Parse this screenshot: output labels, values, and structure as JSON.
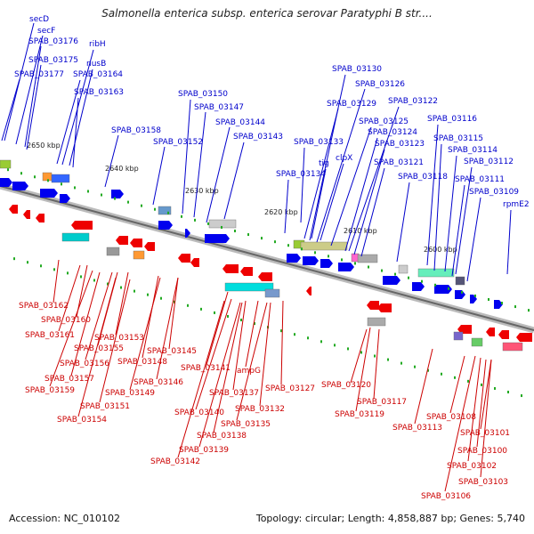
{
  "title": "Salmonella enterica subsp. enterica serovar Paratyphi B str....",
  "footer": {
    "accession": "Accession: NC_010102",
    "summary": "Topology: circular; Length: 4,858,887 bp; Genes: 5,740"
  },
  "colors": {
    "plus_label": "#0000cc",
    "minus_label": "#cc0000",
    "plus_gene": "#0000ee",
    "minus_gene": "#ee0000",
    "backbone": "#888888"
  },
  "kbp_ticks": [
    "2650 kbp",
    "2640 kbp",
    "2630 kbp",
    "2620 kbp",
    "2610 kbp",
    "2600 kbp"
  ],
  "top_labels": [
    "secD",
    "secF",
    "SPAB_03176",
    "ribH",
    "SPAB_03175",
    "nusB",
    "SPAB_03177",
    "SPAB_03164",
    "SPAB_03163",
    "SPAB_03150",
    "SPAB_03147",
    "SPAB_03144",
    "SPAB_03158",
    "SPAB_03152",
    "SPAB_03143",
    "SPAB_03130",
    "SPAB_03126",
    "SPAB_03122",
    "SPAB_03129",
    "SPAB_03125",
    "SPAB_03116",
    "SPAB_03124",
    "SPAB_03115",
    "SPAB_03133",
    "SPAB_03123",
    "SPAB_03114",
    "clpX",
    "SPAB_03112",
    "tig",
    "SPAB_03121",
    "SPAB_03134",
    "SPAB_03118",
    "SPAB_03111",
    "SPAB_03109",
    "rpmE2"
  ],
  "bottom_labels": [
    "SPAB_03162",
    "SPAB_03160",
    "SPAB_03161",
    "SPAB_03155",
    "SPAB_03153",
    "SPAB_03156",
    "SPAB_03148",
    "SPAB_03145",
    "SPAB_03157",
    "SPAB_03146",
    "SPAB_03159",
    "SPAB_03149",
    "SPAB_03141",
    "ampG",
    "SPAB_03127",
    "SPAB_03120",
    "SPAB_03137",
    "SPAB_03151",
    "SPAB_03132",
    "SPAB_03117",
    "SPAB_03140",
    "SPAB_03154",
    "SPAB_03119",
    "SPAB_03135",
    "SPAB_03108",
    "SPAB_03138",
    "SPAB_03113",
    "SPAB_03101",
    "SPAB_03139",
    "SPAB_03100",
    "SPAB_03142",
    "SPAB_03102",
    "SPAB_03103",
    "SPAB_03106"
  ]
}
